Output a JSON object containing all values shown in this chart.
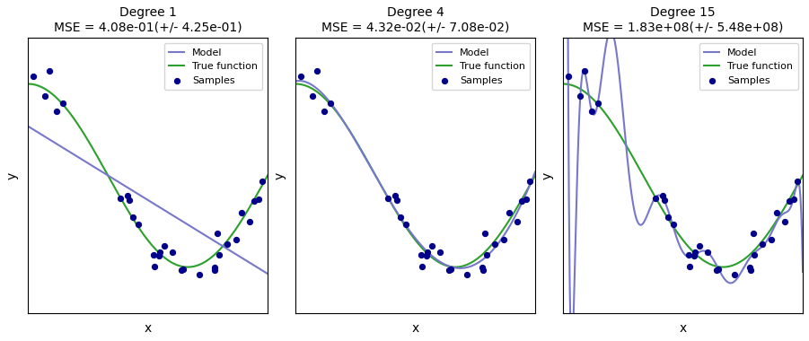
{
  "degrees": [
    1,
    4,
    15
  ],
  "titles": [
    "Degree 1",
    "Degree 4",
    "Degree 15"
  ],
  "mse_labels": [
    "MSE = 4.08e-01(+/- 4.25e-01)",
    "MSE = 4.32e-02(+/- 7.08e-02)",
    "MSE = 1.83e+08(+/- 5.48e+08)"
  ],
  "true_color": "#2ca02c",
  "model_color": "#7777cc",
  "sample_color": "#00008b",
  "noise_std": 0.1,
  "n_samples": 30,
  "random_seed": 0,
  "xlabel": "x",
  "ylabel": "y",
  "legend_entries": [
    "Model",
    "True function",
    "Samples"
  ],
  "ylim": [
    -1.5,
    1.5
  ],
  "figsize": [
    9.01,
    3.8
  ],
  "dpi": 100,
  "title_fontsize": 10,
  "legend_fontsize": 8,
  "sample_size": 18
}
